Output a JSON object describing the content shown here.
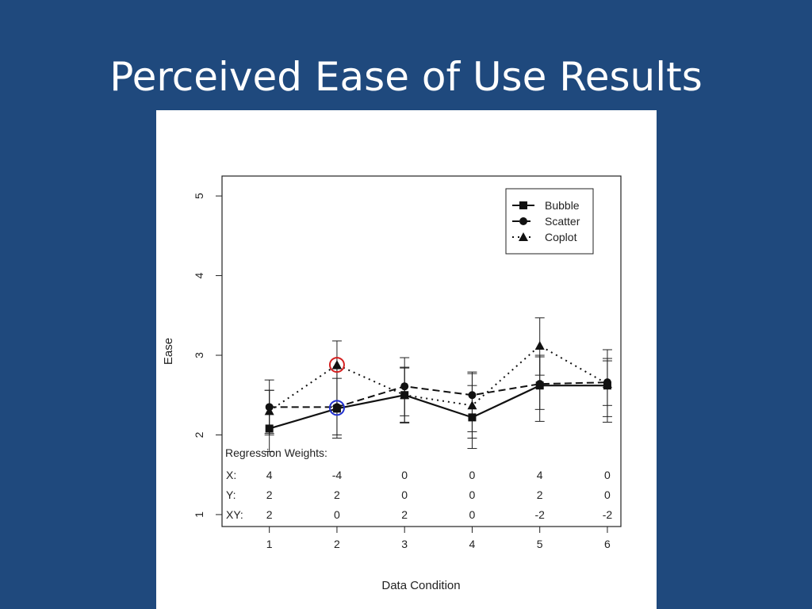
{
  "slide": {
    "title": "Perceived Ease of Use Results"
  },
  "chart_data": {
    "type": "line",
    "title": "",
    "xlabel": "Data Condition",
    "ylabel": "Ease",
    "xlim": [
      0.3,
      6.2
    ],
    "ylim": [
      0.85,
      5.25
    ],
    "x_ticks": [
      1,
      2,
      3,
      4,
      5,
      6
    ],
    "y_ticks": [
      1,
      2,
      3,
      4,
      5
    ],
    "legend": {
      "position": "top-right"
    },
    "categories": [
      1,
      2,
      3,
      4,
      5,
      6
    ],
    "series": [
      {
        "name": "Bubble",
        "line_style": "solid",
        "marker": "square",
        "values": [
          2.08,
          2.33,
          2.5,
          2.22,
          2.62,
          2.62
        ],
        "error_low": [
          1.79,
          2.0,
          2.16,
          1.83,
          2.17,
          2.16
        ],
        "error_high": [
          2.56,
          2.71,
          2.85,
          2.62,
          2.98,
          3.07
        ]
      },
      {
        "name": "Scatter",
        "line_style": "dashed",
        "marker": "circle",
        "values": [
          2.35,
          2.35,
          2.61,
          2.5,
          2.64,
          2.66
        ],
        "error_low": [
          2.02,
          1.96,
          2.15,
          1.96,
          2.32,
          2.23
        ],
        "error_high": [
          2.69,
          2.83,
          2.97,
          2.77,
          3.0,
          2.96
        ]
      },
      {
        "name": "Coplot",
        "line_style": "dotted",
        "marker": "triangle",
        "values": [
          2.3,
          2.88,
          2.5,
          2.37,
          3.12,
          2.64
        ],
        "error_low": [
          2.0,
          2.36,
          2.24,
          2.04,
          2.75,
          2.37
        ],
        "error_high": [
          2.56,
          3.18,
          2.84,
          2.79,
          3.47,
          2.93
        ]
      }
    ],
    "highlights": [
      {
        "series": "Coplot",
        "x": 2,
        "y": 2.88,
        "color": "#d42020"
      },
      {
        "series": "Bubble/Scatter",
        "x": 2,
        "y": 2.34,
        "color": "#2030d0"
      }
    ],
    "annotation": {
      "heading": "Regression Weights:",
      "rows": [
        {
          "label": "X:",
          "values": [
            "4",
            "-4",
            "0",
            "0",
            "4",
            "0"
          ]
        },
        {
          "label": "Y:",
          "values": [
            "2",
            "2",
            "0",
            "0",
            "2",
            "0"
          ]
        },
        {
          "label": "XY:",
          "values": [
            "2",
            "0",
            "2",
            "0",
            "-2",
            "-2"
          ]
        }
      ]
    }
  }
}
